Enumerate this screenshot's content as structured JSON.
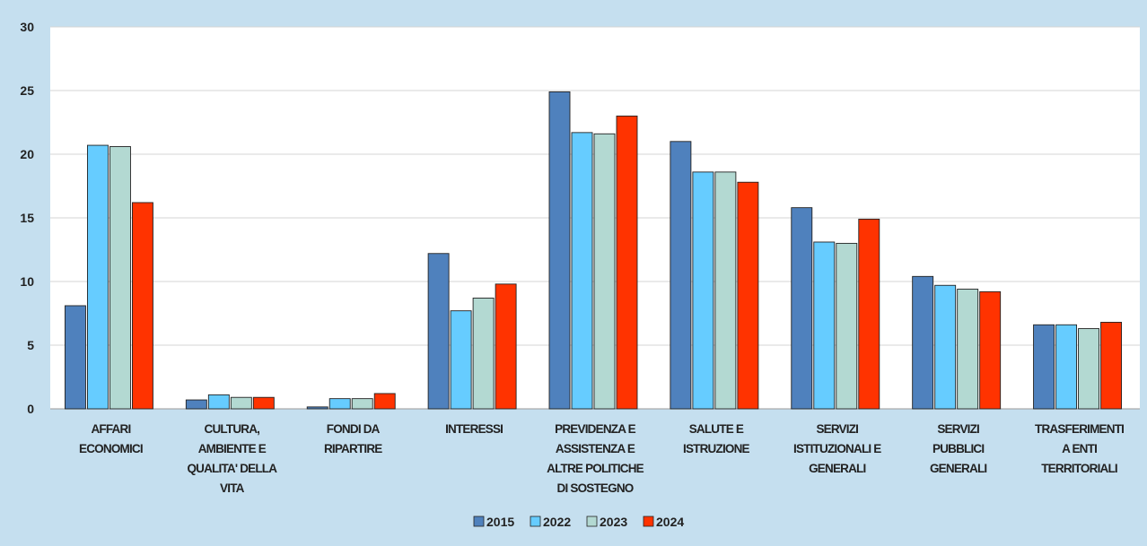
{
  "chart_data": {
    "type": "bar",
    "categories": [
      [
        "AFFARI",
        "ECONOMICI"
      ],
      [
        "CULTURA,",
        "AMBIENTE E",
        "QUALITA' DELLA",
        "VITA"
      ],
      [
        "FONDI DA",
        "RIPARTIRE"
      ],
      [
        "INTERESSI"
      ],
      [
        "PREVIDENZA E",
        "ASSISTENZA E",
        "ALTRE POLITICHE",
        "DI SOSTEGNO"
      ],
      [
        "SALUTE E",
        "ISTRUZIONE"
      ],
      [
        "SERVIZI",
        "ISTITUZIONALI E",
        "GENERALI"
      ],
      [
        "SERVIZI",
        "PUBBLICI",
        "GENERALI"
      ],
      [
        "TRASFERIMENTI",
        "A ENTI",
        "TERRITORIALI"
      ]
    ],
    "series": [
      {
        "name": "2015",
        "color": "#4f81bd",
        "values": [
          8.1,
          0.7,
          0.15,
          12.2,
          24.9,
          21.0,
          15.8,
          10.4,
          6.6
        ]
      },
      {
        "name": "2022",
        "color": "#66ccff",
        "values": [
          20.7,
          1.1,
          0.8,
          7.7,
          21.7,
          18.6,
          13.1,
          9.7,
          6.6
        ]
      },
      {
        "name": "2023",
        "color": "#b3d9d2",
        "values": [
          20.6,
          0.9,
          0.8,
          8.7,
          21.6,
          18.6,
          13.0,
          9.4,
          6.3
        ]
      },
      {
        "name": "2024",
        "color": "#ff3300",
        "values": [
          16.2,
          0.9,
          1.2,
          9.8,
          23.0,
          17.8,
          14.9,
          9.2,
          6.8
        ]
      }
    ],
    "ylim": [
      0,
      30
    ],
    "yticks": [
      0,
      5,
      10,
      15,
      20,
      25,
      30
    ],
    "grid": true,
    "legend_position": "bottom",
    "background": "#c5dfef"
  }
}
